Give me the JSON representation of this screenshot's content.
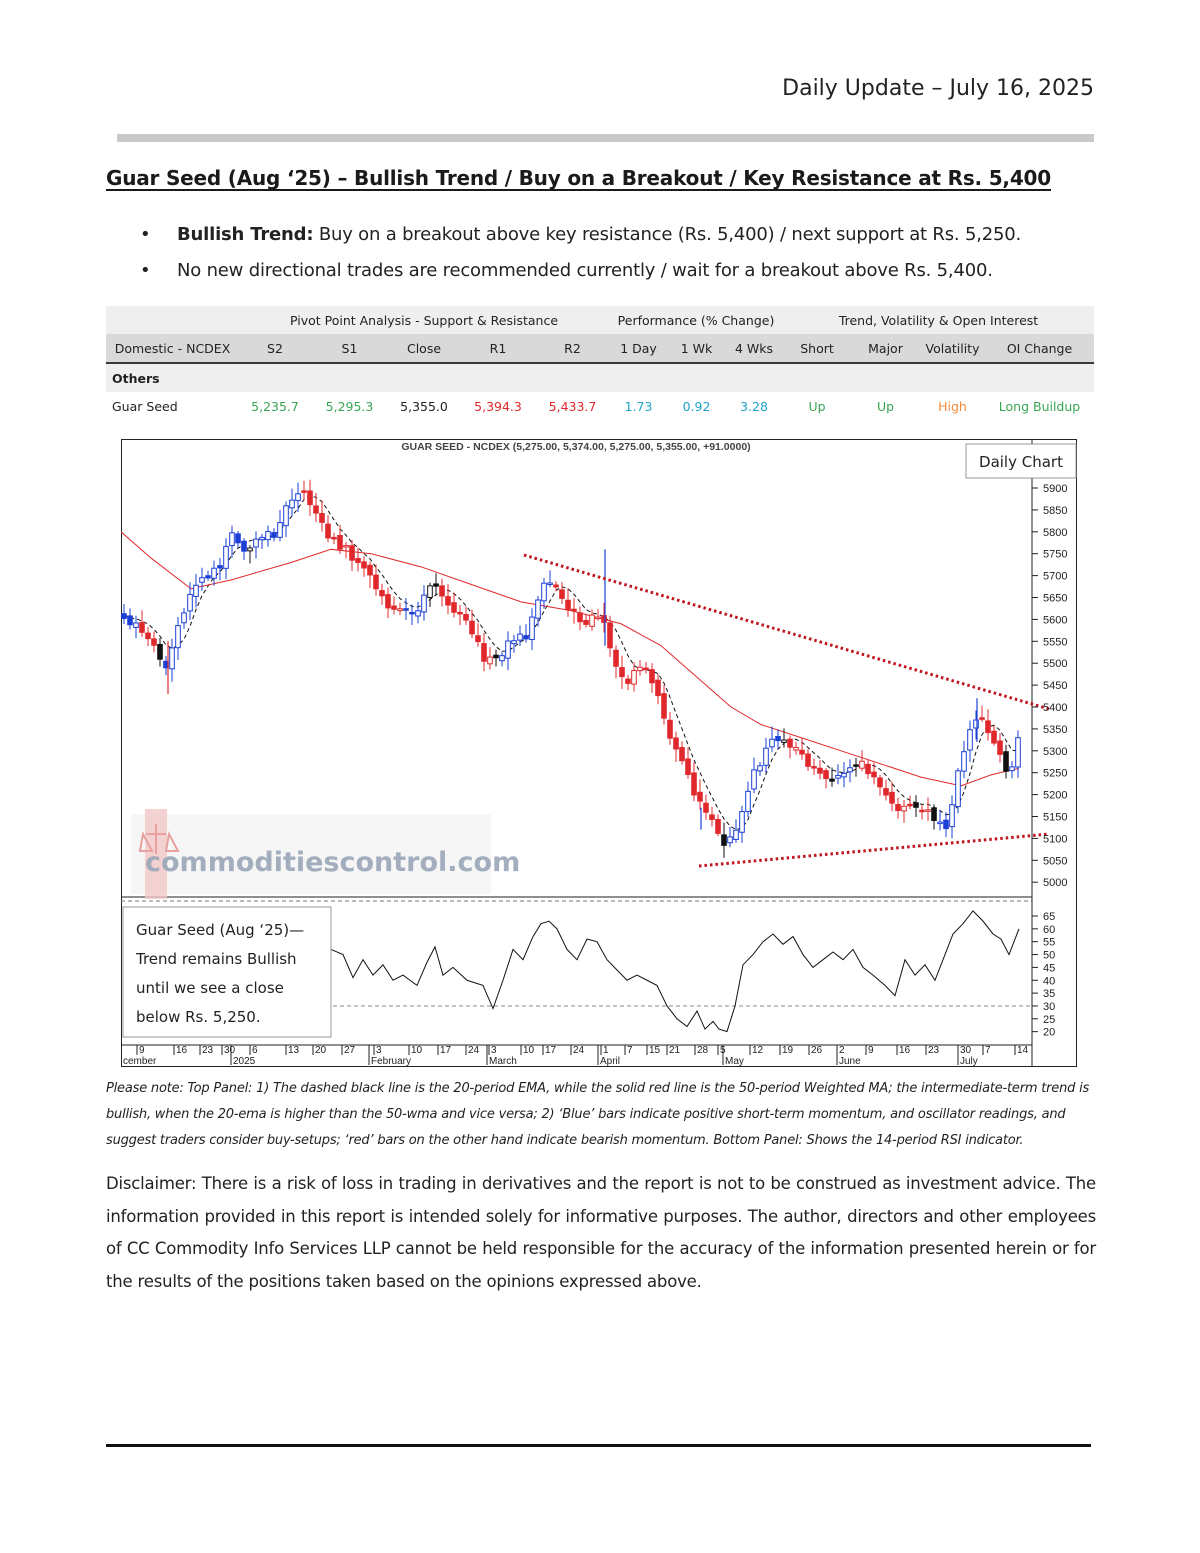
{
  "header": {
    "date": "Daily Update – July 16, 2025"
  },
  "title": "Guar Seed (Aug    ‘25) – Bullish Trend / Buy on a Breakout / Key Resistance at Rs. 5,400",
  "bullets": [
    {
      "bold": "Bullish Trend:",
      "text": " Buy on a breakout above key resistance (Rs. 5,400) / next support at Rs. 5,250."
    },
    {
      "bold": "",
      "text": "No new directional trades are recommended currently / wait for a breakout above Rs. 5,400."
    }
  ],
  "table": {
    "groups": {
      "pivot": "Pivot Point Analysis - Support & Resistance",
      "performance": "Performance (% Change)",
      "trend": "Trend, Volatility & Open Interest"
    },
    "headers": [
      "Domestic - NCDEX",
      "S2",
      "S1",
      "Close",
      "R1",
      "R2",
      "1 Day",
      "1 Wk",
      "4 Wks",
      "Short",
      "Major",
      "Volatility",
      "OI Change"
    ],
    "section": "Others",
    "row": [
      "Guar Seed",
      "5,235.7",
      "5,295.3",
      "5,355.0",
      "5,394.3",
      "5,433.7",
      "1.73",
      "0.92",
      "3.28",
      "Up",
      "Up",
      "High",
      "Long Buildup"
    ],
    "colors": {
      "support": "#3aa655",
      "close": "#222222",
      "resistance": "#e0282c",
      "performance": "#1fa3c9",
      "trend": "#3aa655",
      "volatility": "#f08a3c",
      "oi": "#3aa655"
    }
  },
  "chart": {
    "title": "GUAR SEED - NCDEX (5,275.00, 5,374.00, 5,275.00, 5,355.00, +91.0000)",
    "label": "Daily Chart",
    "price_axis": [
      "5900",
      "5850",
      "5800",
      "5750",
      "5700",
      "5650",
      "5600",
      "5550",
      "5500",
      "5450",
      "5400",
      "5350",
      "5300",
      "5250",
      "5200",
      "5150",
      "5100",
      "5050",
      "5000"
    ],
    "rsi_axis": [
      "65",
      "60",
      "55",
      "50",
      "45",
      "40",
      "35",
      "30",
      "25",
      "20"
    ],
    "date_ticks": [
      "9",
      "16",
      "23",
      "30",
      "6",
      "13",
      "20",
      "27",
      "3",
      "10",
      "17",
      "24",
      "3",
      "10",
      "17",
      "24",
      "1",
      "7",
      "15",
      "21",
      "28",
      "5",
      "12",
      "19",
      "26",
      "2",
      "9",
      "16",
      "23",
      "30",
      "7",
      "14"
    ],
    "month_labels": [
      "cember",
      "2025",
      "February",
      "March",
      "April",
      "May",
      "June",
      "July"
    ],
    "watermark": "commoditiescontrol.com",
    "annotation": [
      "Guar Seed (Aug    ‘25)—",
      "Trend remains Bullish",
      "until we see a close",
      "below Rs. 5,250."
    ],
    "colors": {
      "bull": "#1a3fd6",
      "bear": "#e0282c",
      "neutral": "#111111",
      "ema": "#111111",
      "wma": "#e0282c",
      "trendline": "#c0141d"
    }
  },
  "note": "Please note: Top Panel: 1) The dashed black line is the 20-period EMA, while the solid red line is the 50-period Weighted MA; the intermediate-term trend is bullish, when the 20-ema is higher than the 50-wma and vice versa; 2)   ‘Blue’   bars indicate positive short-term momentum, and oscillator readings, and suggest traders consider buy-setups;   ‘red’   bars on the other hand indicate bearish momentum. Bottom Panel: Shows the 14-period RSI indicator.",
  "disclaimer": "Disclaimer: There is a risk of loss in trading in derivatives and the report is not to be construed as investment advice. The information provided in this report is intended solely for informative purposes. The author, directors and other employees of CC Commodity Info Services LLP cannot be held responsible for the accuracy of the information presented herein or for the results of the positions taken based on the opinions expressed above."
}
